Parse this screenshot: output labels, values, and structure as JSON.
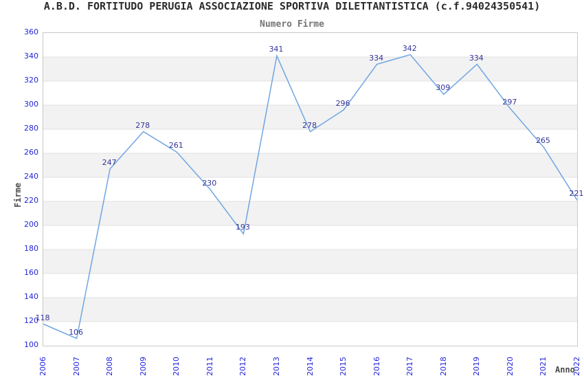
{
  "chart_data": {
    "type": "line",
    "title": "A.B.D. FORTITUDO PERUGIA ASSOCIAZIONE SPORTIVA DILETTANTISTICA (c.f.94024350541)",
    "subtitle": "Numero Firme",
    "xlabel": "Anno",
    "ylabel": "Firme",
    "categories": [
      "2006",
      "2007",
      "2008",
      "2009",
      "2010",
      "2011",
      "2012",
      "2013",
      "2014",
      "2015",
      "2016",
      "2017",
      "2018",
      "2019",
      "2020",
      "2021",
      "2022"
    ],
    "values": [
      118,
      106,
      247,
      278,
      261,
      230,
      193,
      341,
      278,
      296,
      334,
      342,
      309,
      334,
      297,
      265,
      221
    ],
    "yticks": [
      360,
      340,
      320,
      300,
      280,
      260,
      240,
      220,
      200,
      180,
      160,
      140,
      120,
      100
    ],
    "ylim": [
      100,
      360
    ],
    "ytick_step": 20,
    "grid": "horizontal gridlines with alternating shaded bands every 20 units",
    "legend": "none",
    "data_labels_shown": true,
    "colors": {
      "line": "#6fa5e2",
      "band_fill": "#f2f2f2",
      "gridline": "#e0e0e0",
      "plot_border": "#c8c8c8",
      "tick_label": "#2222dd",
      "data_label": "#333399",
      "title": "#2b2b2b",
      "subtitle": "#757575",
      "axis_name": "#4a4a4a"
    }
  }
}
